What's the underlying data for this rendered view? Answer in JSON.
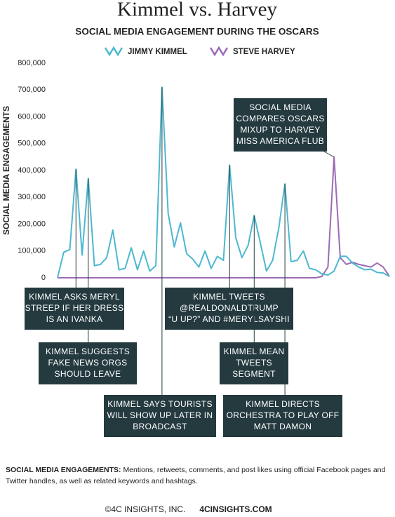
{
  "chart_data": {
    "type": "line",
    "title": "Kimmel vs. Harvey",
    "subtitle": "SOCIAL MEDIA ENGAGEMENT DURING THE OSCARS",
    "y_label": "SOCIAL MEDIA ENGAGEMENTS",
    "ylim": [
      0,
      800000
    ],
    "yticks": [
      0,
      {
        "value": 100000,
        "label": "100,000"
      },
      {
        "value": 200000,
        "label": "200,000"
      },
      {
        "value": 300000,
        "label": "300,000"
      },
      {
        "value": 400000,
        "label": "400,000"
      },
      {
        "value": 500000,
        "label": "500,000"
      },
      {
        "value": 600000,
        "label": "600,000"
      },
      {
        "value": 700000,
        "label": "700,000"
      },
      {
        "value": 800000,
        "label": "800,000"
      }
    ],
    "series": [
      {
        "name": "JIMMY KIMMEL",
        "color": "#4cb8cf",
        "values": [
          0,
          95000,
          105000,
          405000,
          85000,
          370000,
          45000,
          50000,
          75000,
          178000,
          30000,
          35000,
          112000,
          30000,
          100000,
          25000,
          45000,
          710000,
          240000,
          115000,
          205000,
          90000,
          70000,
          40000,
          100000,
          35000,
          80000,
          65000,
          420000,
          150000,
          75000,
          120000,
          232000,
          130000,
          25000,
          65000,
          185000,
          350000,
          60000,
          65000,
          100000,
          35000,
          30000,
          15000,
          10000,
          25000,
          80000,
          80000,
          55000,
          40000,
          30000,
          32000,
          20000,
          18000,
          5000
        ]
      },
      {
        "name": "STEVE HARVEY",
        "color": "#9b6bb6",
        "values": [
          0,
          0,
          0,
          0,
          0,
          0,
          0,
          0,
          0,
          0,
          0,
          0,
          0,
          0,
          0,
          0,
          0,
          0,
          0,
          0,
          0,
          0,
          0,
          0,
          0,
          0,
          0,
          0,
          0,
          0,
          0,
          0,
          0,
          0,
          0,
          0,
          0,
          0,
          0,
          0,
          0,
          0,
          0,
          5000,
          40000,
          450000,
          75000,
          50000,
          58000,
          50000,
          45000,
          40000,
          55000,
          40000,
          5000
        ]
      }
    ],
    "annotations": [
      [
        "KIMMEL ASKS MERYL",
        "STREEP IF HER DRESS",
        "IS AN IVANKA"
      ],
      [
        "KIMMEL SUGGESTS",
        "FAKE NEWS ORGS",
        "SHOULD LEAVE"
      ],
      [
        "KIMMEL SAYS TOURISTS",
        "WILL SHOW UP LATER IN",
        "BROADCAST"
      ],
      [
        "KIMMEL TWEETS",
        "@REALDONALDTRUMP",
        "“U UP?” AND #MERYLSAYSHI"
      ],
      [
        "KIMMEL MEAN",
        "TWEETS",
        "SEGMENT"
      ],
      [
        "KIMMEL DIRECTS",
        "ORCHESTRA TO PLAY OFF",
        "MATT DAMON"
      ],
      [
        "SOCIAL MEDIA",
        "COMPARES OSCARS",
        "MIXUP TO HARVEY",
        "MISS AMERICA FLUB"
      ]
    ]
  },
  "footnote": {
    "term": "SOCIAL MEDIA ENGAGEMENTS:",
    "text": "Mentions, retweets, comments, and post likes using official Facebook pages and Twitter handles, as well as related keywords and hashtags."
  },
  "footer": {
    "copyright": "©4C INSIGHTS, INC.",
    "site": "4CINSIGHTS.COM"
  }
}
